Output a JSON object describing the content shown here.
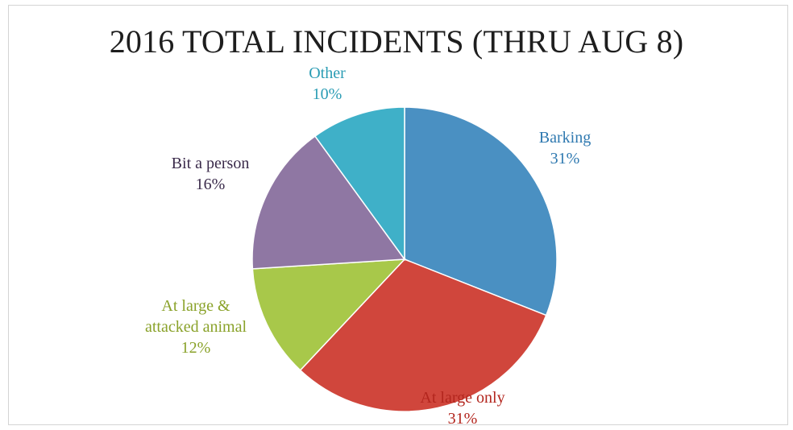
{
  "chart_data": {
    "type": "pie",
    "title": "2016 TOTAL INCIDENTS (THRU AUG 8)",
    "slices": [
      {
        "label": "Barking",
        "percent_label": "31%",
        "value": 31,
        "color": "#4a90c2",
        "label_color": "#2f79b0"
      },
      {
        "label": "At large only",
        "percent_label": "31%",
        "value": 31,
        "color": "#d0463c",
        "label_color": "#b3261e"
      },
      {
        "label": "At large &\nattacked animal",
        "percent_label": "12%",
        "value": 12,
        "color": "#a8c84a",
        "label_color": "#8aa22a"
      },
      {
        "label": "Bit a person",
        "percent_label": "16%",
        "value": 16,
        "color": "#8f77a3",
        "label_color": "#3a2a4a"
      },
      {
        "label": "Other",
        "percent_label": "10%",
        "value": 10,
        "color": "#3fb0c8",
        "label_color": "#2a9cb4"
      }
    ],
    "start_angle": "12 o'clock",
    "direction": "clockwise",
    "legend": "none",
    "data_labels": "outside"
  }
}
